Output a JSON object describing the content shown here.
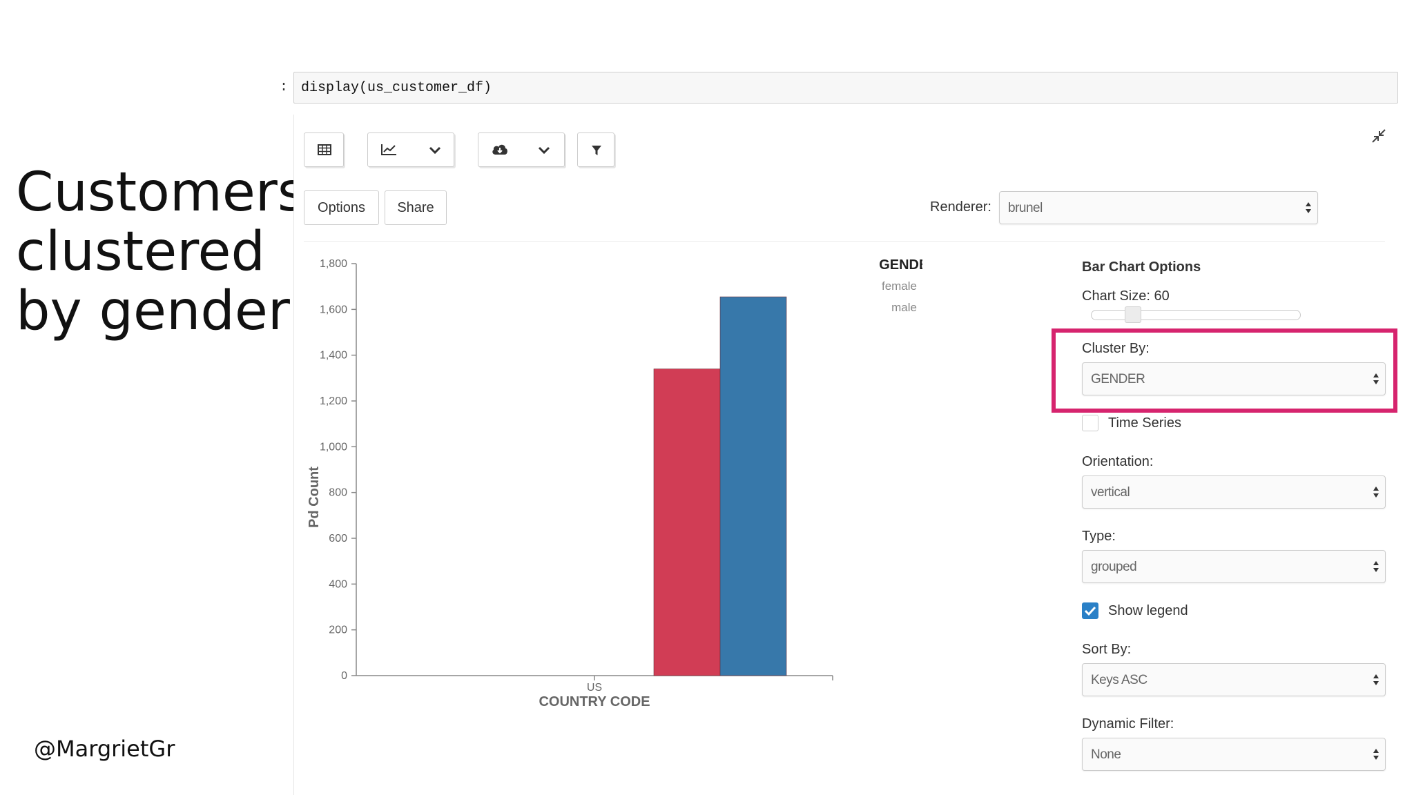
{
  "slide": {
    "title_lines": [
      "Customers",
      "clustered",
      "by gender"
    ],
    "handle": "@MargrietGr"
  },
  "cell": {
    "prompt": ":",
    "code": "display(us_customer_df)"
  },
  "toolbar": {
    "table_icon": "table-icon",
    "chart_icon": "line-chart-icon",
    "download_icon": "cloud-download-icon",
    "filter_icon": "filter-icon",
    "dropdown_icon": "chevron-down-icon",
    "collapse_icon": "collapse-arrows-icon",
    "options_label": "Options",
    "share_label": "Share"
  },
  "renderer": {
    "label": "Renderer:",
    "value": "brunel"
  },
  "options_panel": {
    "title": "Bar Chart Options",
    "chart_size_label": "Chart Size: 60",
    "chart_size_value": 60,
    "cluster_by_label": "Cluster By:",
    "cluster_by_value": "GENDER",
    "time_series_label": "Time Series",
    "time_series_checked": false,
    "orientation_label": "Orientation:",
    "orientation_value": "vertical",
    "type_label": "Type:",
    "type_value": "grouped",
    "show_legend_label": "Show legend",
    "show_legend_checked": true,
    "sort_by_label": "Sort By:",
    "sort_by_value": "Keys ASC",
    "dynamic_filter_label": "Dynamic Filter:",
    "dynamic_filter_value": "None"
  },
  "colors": {
    "female": "#3778aa",
    "male": "#d13d55",
    "highlight": "#d6246e",
    "checkbox": "#2a80c7"
  },
  "chart_data": {
    "type": "bar",
    "categories": [
      "US"
    ],
    "series": [
      {
        "name": "male",
        "values": [
          1340
        ]
      },
      {
        "name": "female",
        "values": [
          1655
        ]
      }
    ],
    "xlabel": "COUNTRY CODE",
    "ylabel": "Pd Count",
    "ylim": [
      0,
      1800
    ],
    "yticks": [
      "0",
      "200",
      "400",
      "600",
      "800",
      "1,000",
      "1,200",
      "1,400",
      "1,600",
      "1,800"
    ],
    "legend_title": "GENDER",
    "legend": [
      "female",
      "male"
    ],
    "legend_position": "top-right",
    "grid": false
  }
}
